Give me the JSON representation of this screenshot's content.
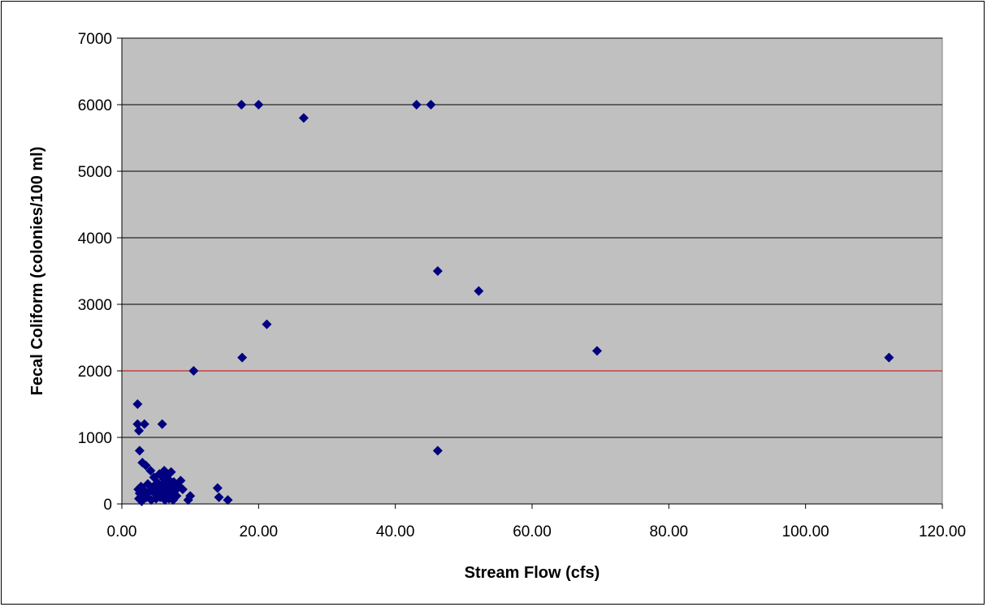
{
  "chart_data": {
    "type": "scatter",
    "xlabel": "Stream Flow (cfs)",
    "ylabel": "Fecal Coliform (colonies/100 ml)",
    "xlim": [
      0,
      120
    ],
    "ylim": [
      0,
      7000
    ],
    "x_ticks": [
      0,
      20,
      40,
      60,
      80,
      100,
      120
    ],
    "x_tick_labels": [
      "0.00",
      "20.00",
      "40.00",
      "60.00",
      "80.00",
      "100.00",
      "120.00"
    ],
    "y_ticks": [
      0,
      1000,
      2000,
      3000,
      4000,
      5000,
      6000,
      7000
    ],
    "y_tick_labels": [
      "0",
      "1000",
      "2000",
      "3000",
      "4000",
      "5000",
      "6000",
      "7000"
    ],
    "grid": true,
    "legend": "none",
    "reference_line": {
      "y": 2000,
      "color": "#cc0000"
    },
    "colors": {
      "plot_background": "#c0c0c0",
      "marker": "#000080",
      "gridline": "#000000"
    },
    "series": [
      {
        "points": [
          [
            17.5,
            6000
          ],
          [
            20.0,
            6000
          ],
          [
            26.6,
            5800
          ],
          [
            43.1,
            6000
          ],
          [
            45.2,
            6000
          ],
          [
            46.2,
            3500
          ],
          [
            52.2,
            3200
          ],
          [
            69.5,
            2300
          ],
          [
            112.2,
            2200
          ],
          [
            21.2,
            2700
          ],
          [
            17.6,
            2200
          ],
          [
            10.5,
            2000
          ],
          [
            46.2,
            800
          ],
          [
            2.3,
            1500
          ],
          [
            2.3,
            1200
          ],
          [
            2.5,
            1100
          ],
          [
            3.3,
            1200
          ],
          [
            5.9,
            1200
          ],
          [
            2.6,
            800
          ],
          [
            3.0,
            620
          ],
          [
            3.5,
            580
          ],
          [
            4.2,
            500
          ],
          [
            2.4,
            220
          ],
          [
            2.6,
            160
          ],
          [
            2.8,
            260
          ],
          [
            3.1,
            120
          ],
          [
            3.3,
            200
          ],
          [
            2.5,
            80
          ],
          [
            2.9,
            40
          ],
          [
            3.6,
            100
          ],
          [
            3.8,
            300
          ],
          [
            4.0,
            180
          ],
          [
            4.3,
            60
          ],
          [
            4.5,
            250
          ],
          [
            4.7,
            400
          ],
          [
            4.9,
            150
          ],
          [
            5.0,
            80
          ],
          [
            5.2,
            320
          ],
          [
            5.4,
            200
          ],
          [
            5.5,
            450
          ],
          [
            5.6,
            100
          ],
          [
            5.8,
            280
          ],
          [
            6.0,
            160
          ],
          [
            6.1,
            380
          ],
          [
            6.2,
            500
          ],
          [
            6.3,
            60
          ],
          [
            6.4,
            240
          ],
          [
            6.5,
            120
          ],
          [
            6.6,
            420
          ],
          [
            6.7,
            300
          ],
          [
            6.8,
            180
          ],
          [
            6.9,
            80
          ],
          [
            7.0,
            350
          ],
          [
            7.1,
            220
          ],
          [
            7.2,
            480
          ],
          [
            7.3,
            140
          ],
          [
            7.4,
            260
          ],
          [
            7.5,
            60
          ],
          [
            7.6,
            330
          ],
          [
            7.8,
            200
          ],
          [
            8.0,
            120
          ],
          [
            8.2,
            280
          ],
          [
            8.6,
            350
          ],
          [
            8.9,
            220
          ],
          [
            9.7,
            60
          ],
          [
            10.0,
            120
          ],
          [
            14.0,
            240
          ],
          [
            14.2,
            100
          ],
          [
            15.5,
            60
          ]
        ]
      }
    ]
  }
}
